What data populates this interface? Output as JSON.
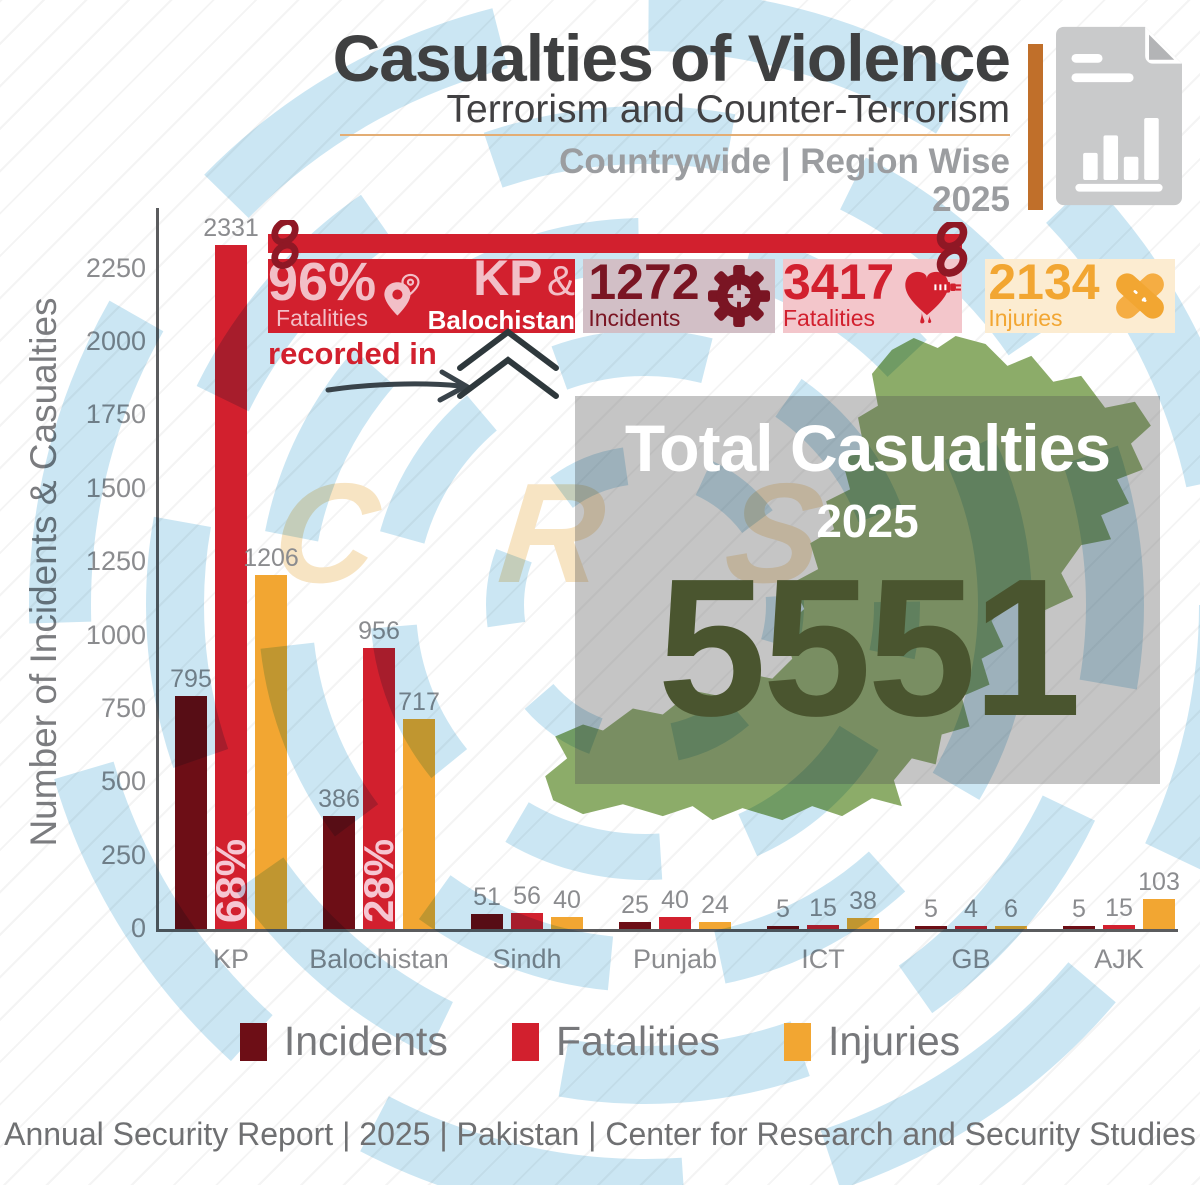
{
  "header": {
    "title": "Casualties of Violence",
    "subtitle": "Terrorism and Counter-Terrorism",
    "scope": "Countrywide | Region Wise",
    "year": "2025"
  },
  "banner": {
    "highlight_pct": "96%",
    "highlight_pct_label": "Fatalities",
    "connector_text": "recorded in",
    "region_primary": "KP",
    "ampersand": "&",
    "region_secondary": "Balochistan",
    "stats": [
      {
        "value": "1272",
        "label": "Incidents",
        "icon": "gear-icon",
        "color": "#7a1523"
      },
      {
        "value": "3417",
        "label": "Fatalities",
        "icon": "bleeding-heart-icon",
        "color": "#d2202e"
      },
      {
        "value": "2134",
        "label": "Injuries",
        "icon": "crossed-bandages-icon",
        "color": "#f2a632"
      }
    ]
  },
  "total_overlay": {
    "title": "Total Casualties",
    "year": "2025",
    "value": "5551"
  },
  "chart_data": {
    "type": "bar",
    "title": "Casualties of Violence | Countrywide | Region Wise | 2025",
    "ylabel": "Number of Incidents & Casualties",
    "categories": [
      "KP",
      "Balochistan",
      "Sindh",
      "Punjab",
      "ICT",
      "GB",
      "AJK"
    ],
    "series": [
      {
        "name": "Incidents",
        "color": "#6d0e16",
        "values": [
          795,
          386,
          51,
          25,
          5,
          5,
          5
        ]
      },
      {
        "name": "Fatalities",
        "color": "#d2202e",
        "values": [
          2331,
          956,
          56,
          40,
          15,
          4,
          15
        ]
      },
      {
        "name": "Injuries",
        "color": "#f2a632",
        "values": [
          1206,
          717,
          40,
          24,
          38,
          6,
          103
        ]
      }
    ],
    "bar_annotations": [
      {
        "category": "KP",
        "series": "Fatalities",
        "text": "68%"
      },
      {
        "category": "Balochistan",
        "series": "Fatalities",
        "text": "28%"
      }
    ],
    "yticks": [
      0,
      250,
      500,
      750,
      1000,
      1250,
      1500,
      1750,
      2000,
      2250
    ],
    "ylim": [
      0,
      2450
    ],
    "grid": false,
    "legend_position": "bottom"
  },
  "watermark": {
    "text": "C R S S"
  },
  "footer": "Annual Security Report | 2025 | Pakistan | Center for Research and Security Studies",
  "colors": {
    "accent_orange": "#c06f2a",
    "banner_red": "#d2202e",
    "map_green": "#8cac69",
    "total_green": "#4a552f",
    "ring_blue": "#c2e2f1"
  }
}
